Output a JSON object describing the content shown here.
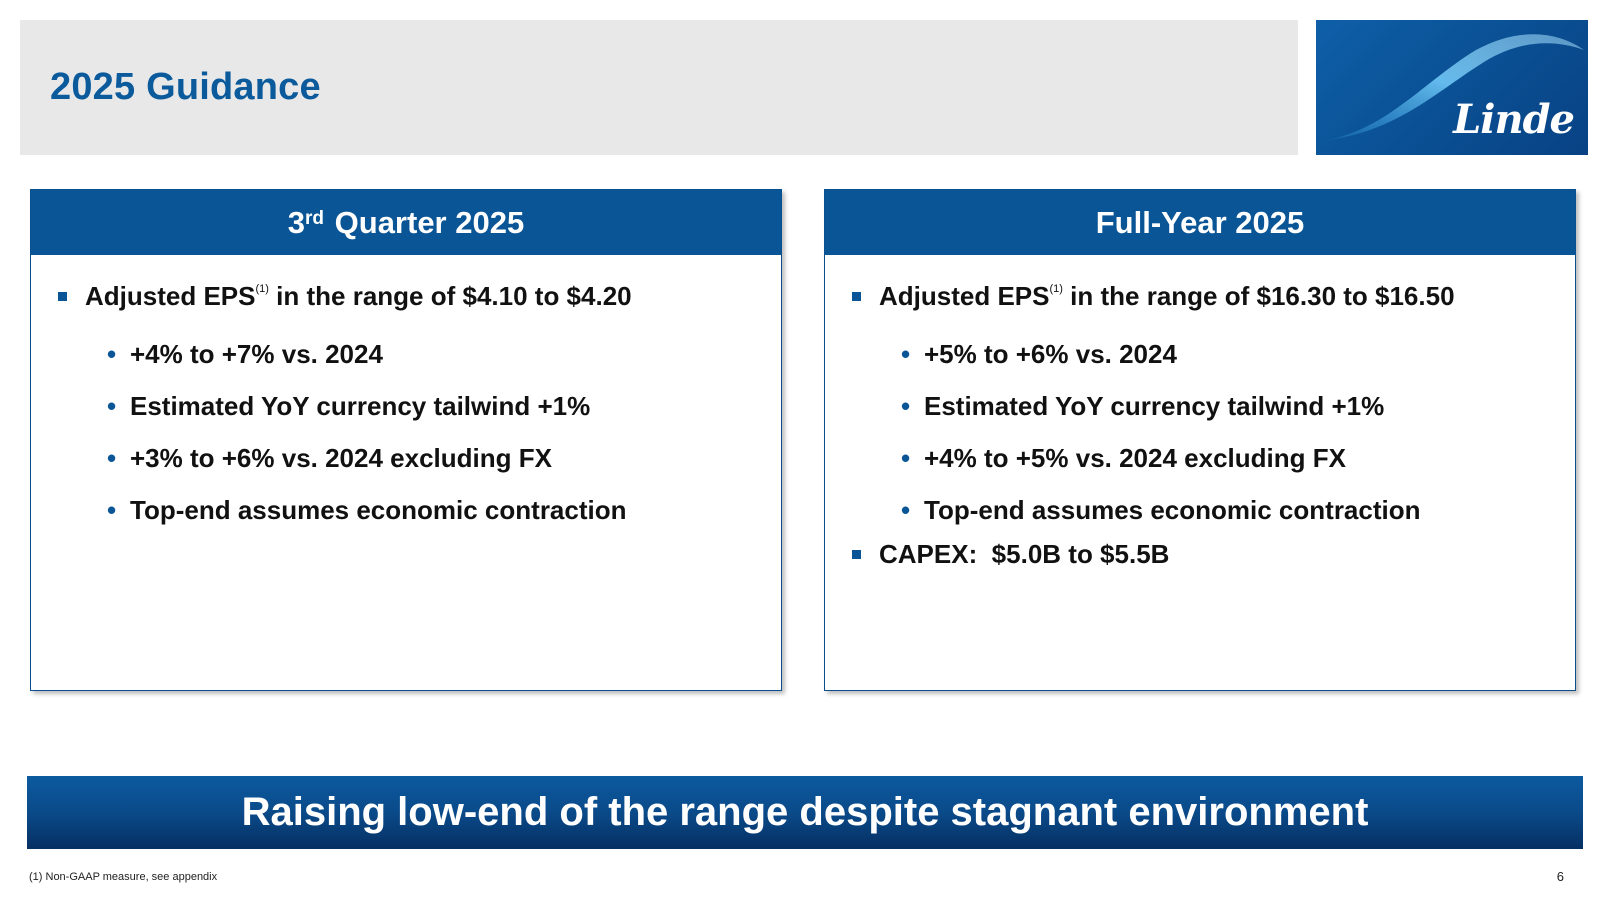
{
  "slide": {
    "title": "2025 Guidance",
    "logo_text": "Linde",
    "footnote": "(1) Non-GAAP measure, see appendix",
    "page_number": "6",
    "tagline": "Raising low-end of the range despite stagnant environment"
  },
  "colors": {
    "brand_blue": "#0a5596",
    "title_blue": "#0a5a9c",
    "title_bar_gray": "#e8e8e9"
  },
  "left_panel": {
    "header_num": "3",
    "header_sup": "rd",
    "header_rest": " Quarter 2025",
    "main_prefix": "Adjusted EPS",
    "main_footnote": "(1)",
    "main_suffix": " in the range of $4.10 to $4.20",
    "sub_items": [
      "+4% to +7% vs. 2024",
      "Estimated YoY currency tailwind +1%",
      "+3% to +6% vs. 2024 excluding FX",
      "Top-end assumes economic contraction"
    ]
  },
  "right_panel": {
    "header": "Full-Year 2025",
    "main_prefix": "Adjusted EPS",
    "main_footnote": "(1)",
    "main_suffix": " in the range of $16.30 to $16.50",
    "sub_items": [
      "+5% to +6% vs. 2024",
      "Estimated YoY currency tailwind +1%",
      "+4% to +5% vs. 2024 excluding FX",
      "Top-end assumes economic contraction"
    ],
    "capex": "CAPEX:  $5.0B to $5.5B"
  }
}
